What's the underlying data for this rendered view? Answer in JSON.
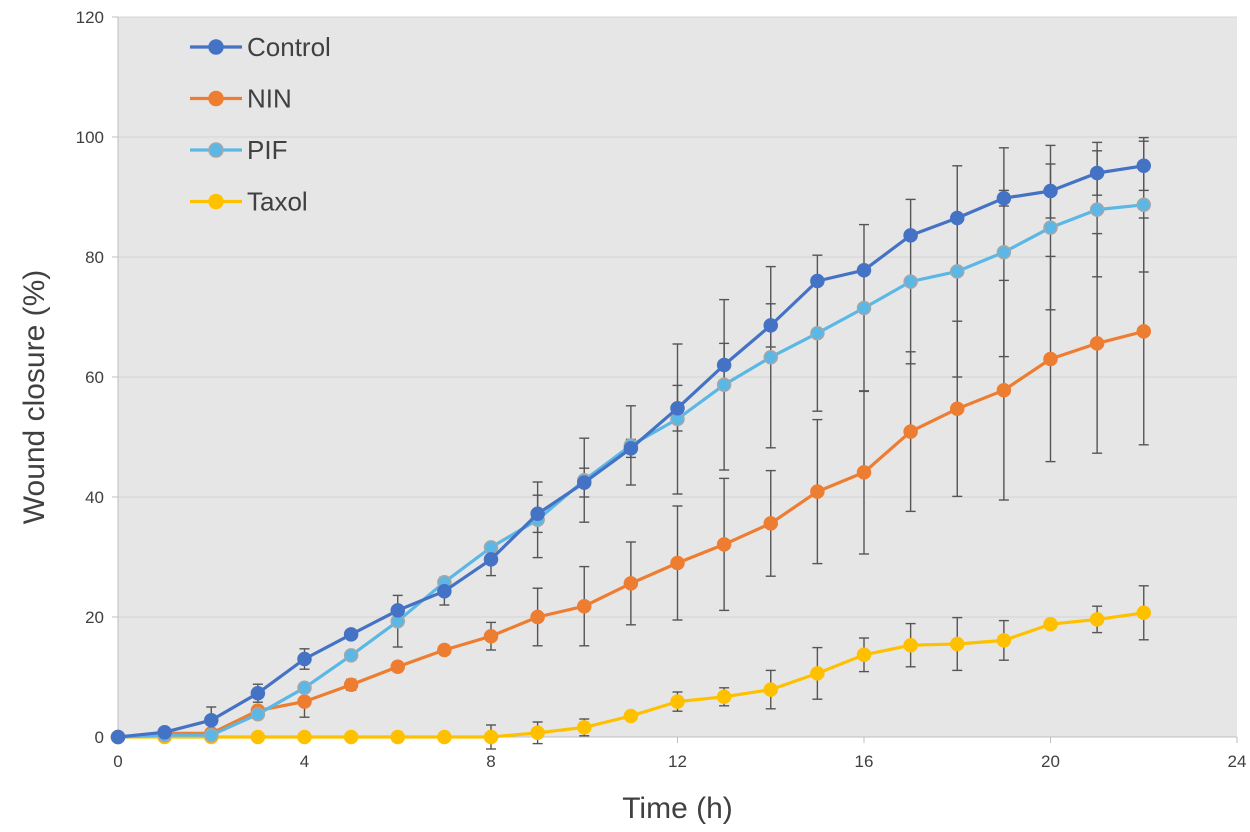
{
  "chart_data": {
    "type": "line",
    "title": "",
    "xlabel": "Time (h)",
    "ylabel": "Wound closure (%)",
    "xlim": [
      0,
      24
    ],
    "ylim": [
      0,
      120
    ],
    "xticks": [
      0,
      4,
      8,
      12,
      16,
      20,
      24
    ],
    "yticks": [
      0,
      20,
      40,
      60,
      80,
      100,
      120
    ],
    "grid": "horizontal",
    "legend": "top-left",
    "x": [
      0,
      1,
      2,
      3,
      4,
      5,
      6,
      7,
      8,
      9,
      10,
      11,
      12,
      13,
      14,
      15,
      16,
      17,
      18,
      19,
      20,
      21,
      22
    ],
    "series": [
      {
        "name": "Control",
        "color": "#4472C4",
        "values": [
          0,
          0.8,
          2.8,
          7.3,
          13.0,
          17.1,
          21.1,
          24.3,
          29.6,
          37.2,
          42.4,
          48.1,
          54.8,
          62.0,
          68.6,
          76.0,
          77.8,
          83.6,
          86.5,
          89.8,
          91.0,
          94.0,
          95.2
        ],
        "errors": [
          0,
          0.3,
          2.2,
          1.5,
          1.7,
          0.7,
          0.6,
          2.3,
          2.7,
          3.1,
          2.4,
          1.5,
          3.8,
          3.6,
          3.6,
          0.5,
          0.5,
          0.5,
          0.6,
          1.3,
          4.5,
          3.7,
          4.1
        ]
      },
      {
        "name": "NIN",
        "color": "#ED7D31",
        "values": [
          0,
          0.6,
          0.6,
          4.4,
          5.9,
          8.7,
          11.7,
          14.5,
          16.8,
          20.0,
          21.8,
          25.6,
          29.0,
          32.1,
          35.6,
          40.9,
          44.1,
          50.9,
          54.7,
          57.8,
          63.0,
          65.6,
          67.6
        ],
        "errors": [
          0,
          0.3,
          0.5,
          0.8,
          2.6,
          0.9,
          0.8,
          0.8,
          2.3,
          4.8,
          6.6,
          6.9,
          9.5,
          11.0,
          8.8,
          12.0,
          13.6,
          13.3,
          14.6,
          18.3,
          17.1,
          18.3,
          18.9
        ]
      },
      {
        "name": "PIF",
        "color": "#5BB7E5",
        "values": [
          0,
          0.3,
          0.3,
          3.8,
          8.2,
          13.6,
          19.3,
          25.8,
          31.6,
          36.2,
          42.8,
          48.6,
          53.0,
          58.7,
          63.3,
          67.3,
          71.5,
          75.9,
          77.6,
          80.8,
          84.9,
          87.9,
          88.7
        ],
        "errors": [
          0,
          0.2,
          0.4,
          0.6,
          0.6,
          0.6,
          4.3,
          0.8,
          0.8,
          6.3,
          7.0,
          6.6,
          12.5,
          14.2,
          15.1,
          13.0,
          13.9,
          13.7,
          17.6,
          17.4,
          13.7,
          11.2,
          11.2
        ]
      },
      {
        "name": "Taxol",
        "color": "#FFC000",
        "values": [
          0,
          0,
          0,
          0,
          0,
          0,
          0,
          0,
          0,
          0.7,
          1.6,
          3.5,
          5.9,
          6.7,
          7.9,
          10.6,
          13.7,
          15.3,
          15.5,
          16.1,
          18.8,
          19.6,
          20.7
        ],
        "errors": [
          0,
          0,
          0,
          0,
          0,
          0,
          0.8,
          0.4,
          2.0,
          1.8,
          1.4,
          0.7,
          1.6,
          1.5,
          3.2,
          4.3,
          2.8,
          3.6,
          4.4,
          3.3,
          0.5,
          2.2,
          4.5
        ]
      }
    ]
  }
}
